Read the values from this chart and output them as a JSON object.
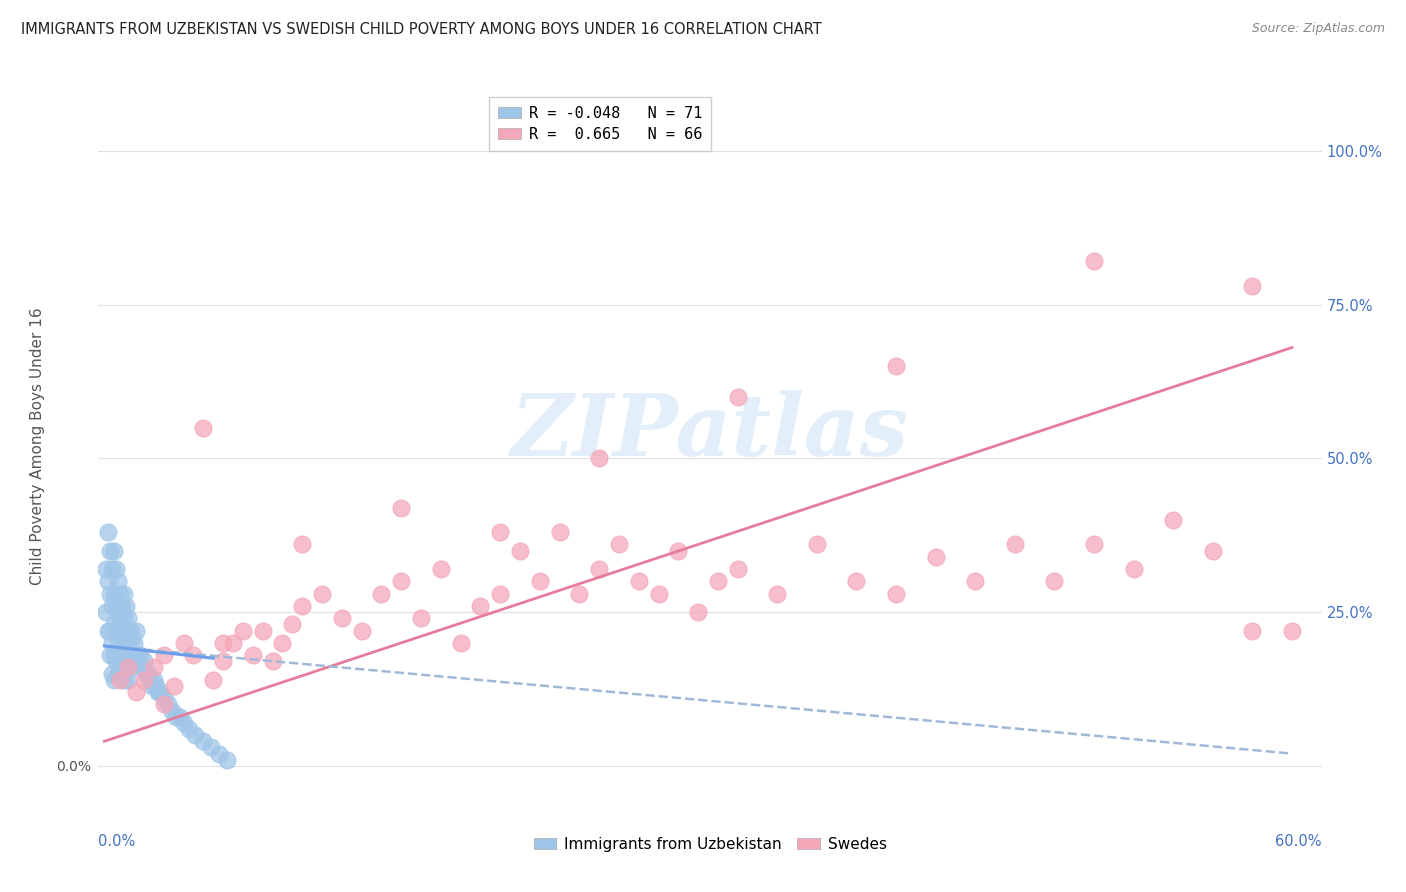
{
  "title": "IMMIGRANTS FROM UZBEKISTAN VS SWEDISH CHILD POVERTY AMONG BOYS UNDER 16 CORRELATION CHART",
  "source": "Source: ZipAtlas.com",
  "ylabel": "Child Poverty Among Boys Under 16",
  "x_ticks": [
    0.0,
    0.1,
    0.2,
    0.3,
    0.4,
    0.5,
    0.6
  ],
  "x_tick_labels": [
    "",
    "",
    "",
    "",
    "",
    "",
    ""
  ],
  "x_left_label": "0.0%",
  "x_right_label": "60.0%",
  "y_ticks": [
    0.0,
    0.25,
    0.5,
    0.75,
    1.0
  ],
  "y_tick_labels_left": [
    "0.0%",
    "",
    "",
    "",
    ""
  ],
  "y_tick_labels_right": [
    "",
    "25.0%",
    "50.0%",
    "75.0%",
    "100.0%"
  ],
  "legend_line1": "R = -0.048   N = 71",
  "legend_line2": "R =  0.665   N = 66",
  "blue_color": "#9fc5e8",
  "pink_color": "#f4a7b9",
  "blue_line_color": "#6d9eeb",
  "pink_line_color": "#e67c9a",
  "blue_dashed_color": "#b0c8e8",
  "right_tick_color": "#4472c4",
  "bottom_label_color": "#4472c4",
  "blue_scatter_x": [
    0.001,
    0.001,
    0.002,
    0.002,
    0.002,
    0.003,
    0.003,
    0.003,
    0.003,
    0.004,
    0.004,
    0.004,
    0.004,
    0.005,
    0.005,
    0.005,
    0.005,
    0.005,
    0.006,
    0.006,
    0.006,
    0.006,
    0.007,
    0.007,
    0.007,
    0.007,
    0.008,
    0.008,
    0.008,
    0.009,
    0.009,
    0.009,
    0.01,
    0.01,
    0.01,
    0.01,
    0.011,
    0.011,
    0.012,
    0.012,
    0.012,
    0.013,
    0.013,
    0.014,
    0.014,
    0.015,
    0.016,
    0.017,
    0.018,
    0.019,
    0.02,
    0.021,
    0.022,
    0.023,
    0.024,
    0.025,
    0.026,
    0.027,
    0.028,
    0.03,
    0.032,
    0.034,
    0.036,
    0.038,
    0.04,
    0.043,
    0.046,
    0.05,
    0.054,
    0.058,
    0.062
  ],
  "blue_scatter_y": [
    0.32,
    0.25,
    0.38,
    0.3,
    0.22,
    0.35,
    0.28,
    0.22,
    0.18,
    0.32,
    0.26,
    0.2,
    0.15,
    0.35,
    0.28,
    0.23,
    0.18,
    0.14,
    0.32,
    0.27,
    0.22,
    0.17,
    0.3,
    0.25,
    0.2,
    0.15,
    0.28,
    0.23,
    0.17,
    0.26,
    0.21,
    0.16,
    0.28,
    0.24,
    0.19,
    0.14,
    0.26,
    0.2,
    0.24,
    0.19,
    0.14,
    0.22,
    0.17,
    0.21,
    0.16,
    0.2,
    0.22,
    0.18,
    0.18,
    0.16,
    0.17,
    0.15,
    0.15,
    0.14,
    0.13,
    0.14,
    0.13,
    0.12,
    0.12,
    0.11,
    0.1,
    0.09,
    0.08,
    0.08,
    0.07,
    0.06,
    0.05,
    0.04,
    0.03,
    0.02,
    0.01
  ],
  "pink_scatter_x": [
    0.008,
    0.012,
    0.016,
    0.02,
    0.025,
    0.03,
    0.035,
    0.04,
    0.045,
    0.05,
    0.055,
    0.06,
    0.065,
    0.07,
    0.075,
    0.08,
    0.085,
    0.09,
    0.095,
    0.1,
    0.11,
    0.12,
    0.13,
    0.14,
    0.15,
    0.16,
    0.17,
    0.18,
    0.19,
    0.2,
    0.21,
    0.22,
    0.23,
    0.24,
    0.25,
    0.26,
    0.27,
    0.28,
    0.29,
    0.3,
    0.31,
    0.32,
    0.34,
    0.36,
    0.38,
    0.4,
    0.42,
    0.44,
    0.46,
    0.48,
    0.5,
    0.52,
    0.54,
    0.56,
    0.58,
    0.6,
    0.03,
    0.06,
    0.1,
    0.15,
    0.2,
    0.25,
    0.32,
    0.4,
    0.5,
    0.58
  ],
  "pink_scatter_y": [
    0.14,
    0.16,
    0.12,
    0.14,
    0.16,
    0.18,
    0.13,
    0.2,
    0.18,
    0.55,
    0.14,
    0.17,
    0.2,
    0.22,
    0.18,
    0.22,
    0.17,
    0.2,
    0.23,
    0.26,
    0.28,
    0.24,
    0.22,
    0.28,
    0.3,
    0.24,
    0.32,
    0.2,
    0.26,
    0.28,
    0.35,
    0.3,
    0.38,
    0.28,
    0.32,
    0.36,
    0.3,
    0.28,
    0.35,
    0.25,
    0.3,
    0.32,
    0.28,
    0.36,
    0.3,
    0.28,
    0.34,
    0.3,
    0.36,
    0.3,
    0.36,
    0.32,
    0.4,
    0.35,
    0.22,
    0.22,
    0.1,
    0.2,
    0.36,
    0.42,
    0.38,
    0.5,
    0.6,
    0.65,
    0.82,
    0.78
  ],
  "blue_trend_x": [
    0.0,
    0.6
  ],
  "blue_trend_y": [
    0.195,
    0.155
  ],
  "pink_trend_x": [
    0.0,
    0.6
  ],
  "pink_trend_y": [
    0.04,
    0.68
  ],
  "blue_dash_trend_x": [
    0.0,
    0.6
  ],
  "blue_dash_trend_y": [
    0.195,
    0.02
  ],
  "xlim": [
    -0.003,
    0.615
  ],
  "ylim": [
    -0.06,
    1.1
  ],
  "watermark_text": "ZIPatlas",
  "background_color": "#ffffff",
  "grid_color": "#e0e0e0"
}
